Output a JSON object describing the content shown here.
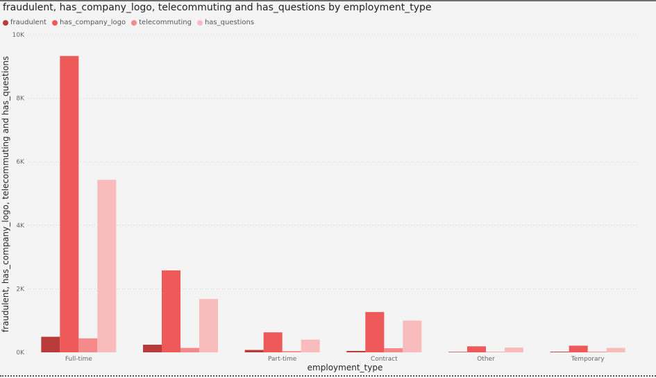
{
  "title": "fraudulent, has_company_logo, telecommuting and has_questions by employment_type",
  "chart_data": {
    "type": "bar",
    "title": "fraudulent, has_company_logo, telecommuting and has_questions by employment_type",
    "xlabel": "employment_type",
    "ylabel": "fraudulent, has_company_logo, telecommuting and has_questions",
    "categories": [
      "Full-time",
      "",
      "Part-time",
      "Contract",
      "Other",
      "Temporary"
    ],
    "ylim": [
      0,
      10000
    ],
    "yticks": [
      0,
      2000,
      4000,
      6000,
      8000,
      10000
    ],
    "ytick_labels": [
      "0K",
      "2K",
      "4K",
      "6K",
      "8K",
      "10K"
    ],
    "grid": true,
    "legend_position": "top-left",
    "series": [
      {
        "name": "fraudulent",
        "color": "#b83a3a",
        "values": [
          490,
          240,
          75,
          45,
          15,
          20
        ]
      },
      {
        "name": "has_company_logo",
        "color": "#ee5a5a",
        "values": [
          9330,
          2580,
          630,
          1270,
          190,
          210
        ]
      },
      {
        "name": "telecommuting",
        "color": "#f48a8a",
        "values": [
          440,
          140,
          40,
          130,
          15,
          20
        ]
      },
      {
        "name": "has_questions",
        "color": "#f8bcbc",
        "values": [
          5430,
          1680,
          400,
          1000,
          150,
          140
        ]
      }
    ]
  }
}
